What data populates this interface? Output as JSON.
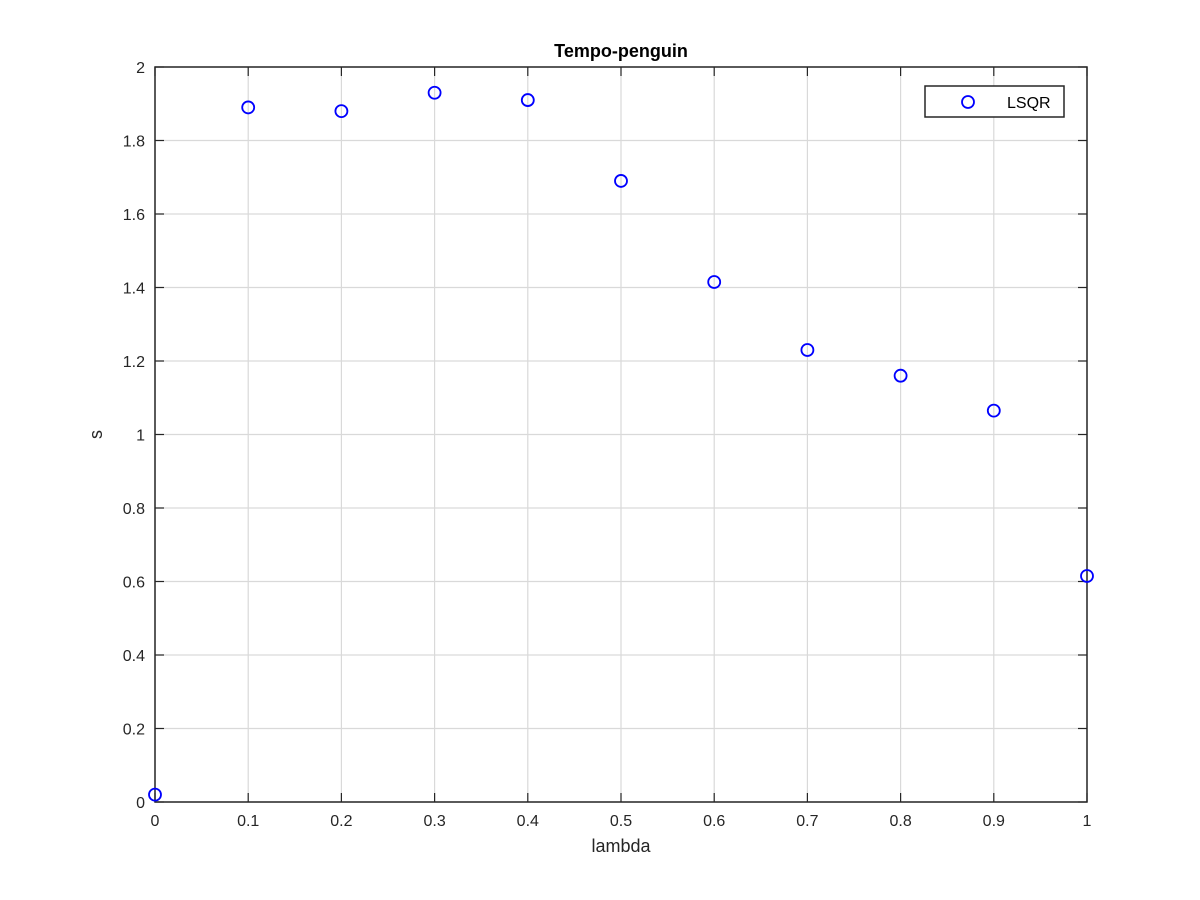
{
  "chart_data": {
    "type": "scatter",
    "title": "Tempo-penguin",
    "xlabel": "lambda",
    "ylabel": "s",
    "xlim": [
      0,
      1
    ],
    "ylim": [
      0,
      2
    ],
    "xticks": [
      0,
      0.1,
      0.2,
      0.3,
      0.4,
      0.5,
      0.6,
      0.7,
      0.8,
      0.9,
      1
    ],
    "xtick_labels": [
      "0",
      "0.1",
      "0.2",
      "0.3",
      "0.4",
      "0.5",
      "0.6",
      "0.7",
      "0.8",
      "0.9",
      "1"
    ],
    "yticks": [
      0,
      0.2,
      0.4,
      0.6,
      0.8,
      1,
      1.2,
      1.4,
      1.6,
      1.8,
      2
    ],
    "ytick_labels": [
      "0",
      "0.2",
      "0.4",
      "0.6",
      "0.8",
      "1",
      "1.2",
      "1.4",
      "1.6",
      "1.8",
      "2"
    ],
    "grid": true,
    "legend_position": "top-right",
    "series": [
      {
        "name": "LSQR",
        "marker": "circle-open",
        "color": "#0000ff",
        "x": [
          0,
          0.1,
          0.2,
          0.3,
          0.4,
          0.5,
          0.6,
          0.7,
          0.8,
          0.9,
          1
        ],
        "y": [
          0.02,
          1.89,
          1.88,
          1.93,
          1.91,
          1.69,
          1.415,
          1.23,
          1.16,
          1.065,
          0.615
        ]
      }
    ]
  }
}
